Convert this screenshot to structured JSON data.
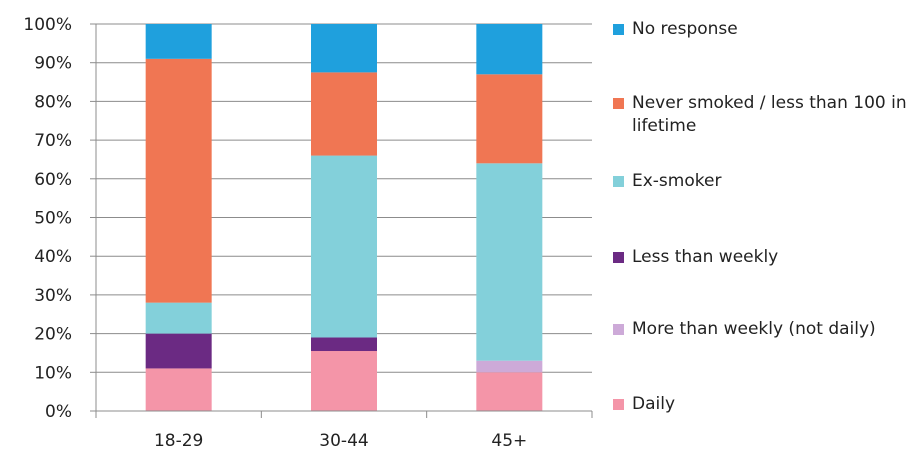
{
  "chart_data": {
    "type": "bar",
    "stacked": true,
    "categories": [
      "18-29",
      "30-44",
      "45+"
    ],
    "series": [
      {
        "name": "Daily",
        "color": "#f495a8",
        "values": [
          11,
          15.5,
          10
        ]
      },
      {
        "name": "More than weekly (not daily)",
        "color": "#cdaad8",
        "values": [
          0,
          0,
          3
        ]
      },
      {
        "name": "Less than weekly",
        "color": "#6b2a83",
        "values": [
          9,
          3.5,
          0
        ]
      },
      {
        "name": "Ex-smoker",
        "color": "#83d0da",
        "values": [
          8,
          47,
          51
        ]
      },
      {
        "name": "Never smoked / less than 100 in lifetime",
        "color": "#f07653",
        "values": [
          63,
          21.5,
          23
        ]
      },
      {
        "name": "No response",
        "color": "#1fa0dd",
        "values": [
          9,
          12.5,
          13
        ]
      }
    ],
    "ylim": [
      0,
      100
    ],
    "yticks": [
      "0%",
      "10%",
      "20%",
      "30%",
      "40%",
      "50%",
      "60%",
      "70%",
      "80%",
      "90%",
      "100%"
    ],
    "grid": true,
    "legend_position": "right",
    "legend_order": [
      "No response",
      "Never smoked / less than 100 in lifetime",
      "Ex-smoker",
      "Less than weekly",
      "More than weekly (not daily)",
      "Daily"
    ]
  }
}
